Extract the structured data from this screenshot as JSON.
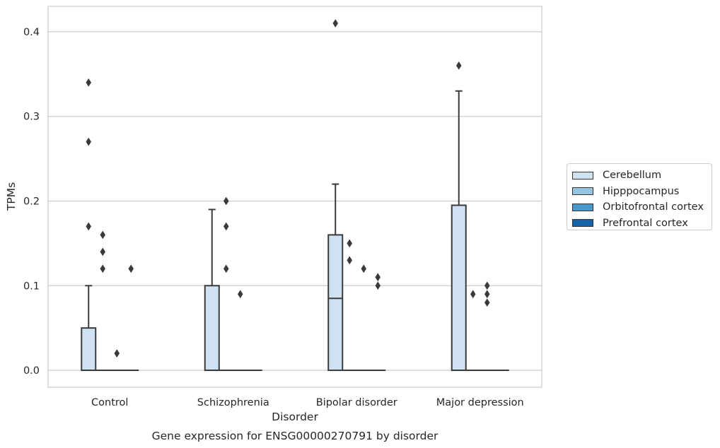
{
  "chart_data": {
    "type": "box",
    "title": "",
    "caption": "Gene expression for ENSG00000270791 by disorder",
    "xlabel": "Disorder",
    "ylabel": "TPMs",
    "ylim": [
      -0.02,
      0.43
    ],
    "yticks": [
      "0.0",
      "0.1",
      "0.2",
      "0.3",
      "0.4"
    ],
    "ytick_values": [
      0.0,
      0.1,
      0.2,
      0.3,
      0.4
    ],
    "grid": "horizontal",
    "legend_position": "right",
    "categories": [
      "Control",
      "Schizophrenia",
      "Bipolar disorder",
      "Major depression"
    ],
    "series": [
      {
        "name": "Cerebellum",
        "color": "#d0e1f2",
        "boxes": [
          {
            "q1": 0.0,
            "median": 0.0,
            "q3": 0.05,
            "whisker_low": 0.0,
            "whisker_high": 0.1,
            "outliers": [
              0.34,
              0.27,
              0.17
            ]
          },
          {
            "q1": 0.0,
            "median": 0.0,
            "q3": 0.1,
            "whisker_low": 0.0,
            "whisker_high": 0.19,
            "outliers": []
          },
          {
            "q1": 0.0,
            "median": 0.085,
            "q3": 0.16,
            "whisker_low": 0.0,
            "whisker_high": 0.22,
            "outliers": [
              0.41
            ]
          },
          {
            "q1": 0.0,
            "median": 0.0,
            "q3": 0.195,
            "whisker_low": 0.0,
            "whisker_high": 0.33,
            "outliers": [
              0.36
            ]
          }
        ]
      },
      {
        "name": "Hipppocampus",
        "color": "#94c4df",
        "boxes": [
          {
            "q1": 0.0,
            "median": 0.0,
            "q3": 0.0,
            "whisker_low": 0.0,
            "whisker_high": 0.0,
            "outliers": [
              0.16,
              0.14,
              0.12
            ]
          },
          {
            "q1": 0.0,
            "median": 0.0,
            "q3": 0.0,
            "whisker_low": 0.0,
            "whisker_high": 0.0,
            "outliers": [
              0.2,
              0.17,
              0.12
            ]
          },
          {
            "q1": 0.0,
            "median": 0.0,
            "q3": 0.0,
            "whisker_low": 0.0,
            "whisker_high": 0.0,
            "outliers": [
              0.15,
              0.13
            ]
          },
          {
            "q1": 0.0,
            "median": 0.0,
            "q3": 0.0,
            "whisker_low": 0.0,
            "whisker_high": 0.0,
            "outliers": [
              0.09
            ]
          }
        ]
      },
      {
        "name": "Orbitofrontal cortex",
        "color": "#4a98c9",
        "boxes": [
          {
            "q1": 0.0,
            "median": 0.0,
            "q3": 0.0,
            "whisker_low": 0.0,
            "whisker_high": 0.0,
            "outliers": [
              0.02
            ]
          },
          {
            "q1": 0.0,
            "median": 0.0,
            "q3": 0.0,
            "whisker_low": 0.0,
            "whisker_high": 0.0,
            "outliers": [
              0.09
            ]
          },
          {
            "q1": 0.0,
            "median": 0.0,
            "q3": 0.0,
            "whisker_low": 0.0,
            "whisker_high": 0.0,
            "outliers": [
              0.12
            ]
          },
          {
            "q1": 0.0,
            "median": 0.0,
            "q3": 0.0,
            "whisker_low": 0.0,
            "whisker_high": 0.0,
            "outliers": [
              0.1,
              0.09,
              0.08
            ]
          }
        ]
      },
      {
        "name": "Prefrontal cortex",
        "color": "#1764ab",
        "boxes": [
          {
            "q1": 0.0,
            "median": 0.0,
            "q3": 0.0,
            "whisker_low": 0.0,
            "whisker_high": 0.0,
            "outliers": [
              0.12
            ]
          },
          {
            "q1": 0.0,
            "median": 0.0,
            "q3": 0.0,
            "whisker_low": 0.0,
            "whisker_high": 0.0,
            "outliers": []
          },
          {
            "q1": 0.0,
            "median": 0.0,
            "q3": 0.0,
            "whisker_low": 0.0,
            "whisker_high": 0.0,
            "outliers": [
              0.11,
              0.1
            ]
          },
          {
            "q1": 0.0,
            "median": 0.0,
            "q3": 0.0,
            "whisker_low": 0.0,
            "whisker_high": 0.0,
            "outliers": []
          }
        ]
      }
    ]
  }
}
